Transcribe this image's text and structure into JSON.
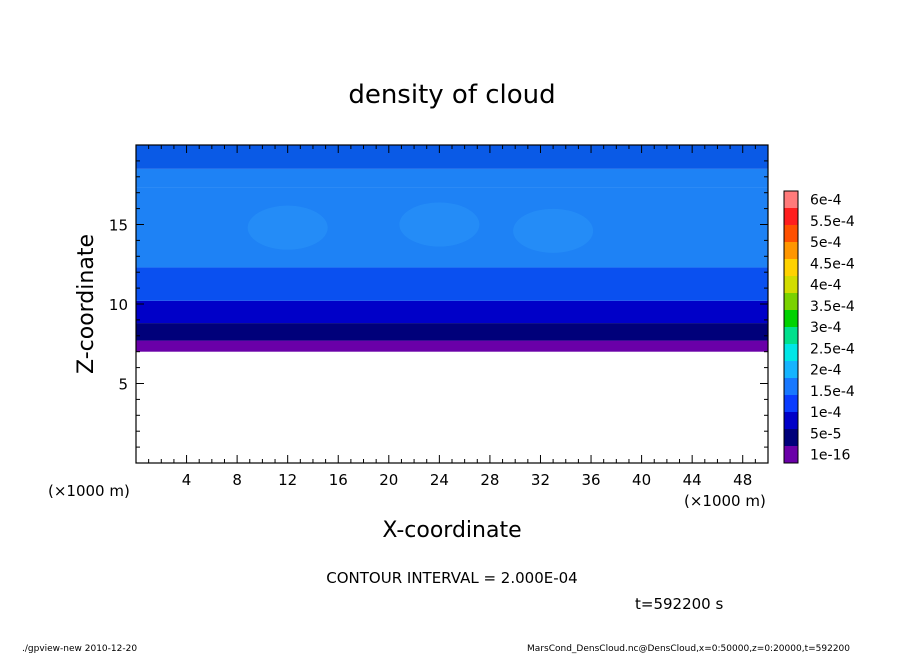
{
  "chart_data": {
    "type": "heatmap",
    "title": "density of cloud",
    "xlabel": "X-coordinate",
    "ylabel": "Z-coordinate",
    "x_unit_left": "(×1000 m)",
    "x_unit_right": "(×1000 m)",
    "xlim": [
      0,
      50
    ],
    "ylim": [
      0,
      20
    ],
    "x_ticks": [
      4,
      8,
      12,
      16,
      20,
      24,
      28,
      32,
      36,
      40,
      44,
      48
    ],
    "y_ticks": [
      5,
      10,
      15
    ],
    "colorbar": {
      "labels": [
        "1e-16",
        "5e-5",
        "1e-4",
        "1.5e-4",
        "2e-4",
        "2.5e-4",
        "3e-4",
        "3.5e-4",
        "4e-4",
        "4.5e-4",
        "5e-4",
        "5.5e-4",
        "6e-4"
      ],
      "colors": [
        "#6a00a8",
        "#00007a",
        "#0000c8",
        "#0a3cff",
        "#1878ff",
        "#16b4ff",
        "#00e6e6",
        "#00e08c",
        "#00d200",
        "#7ad200",
        "#d2dc00",
        "#ffd200",
        "#ff9600",
        "#ff5000",
        "#ff1e1e",
        "#ff7a7a"
      ]
    },
    "layers": [
      {
        "z_bottom": 7.0,
        "z_top": 7.7,
        "level": "1e-16"
      },
      {
        "z_bottom": 7.7,
        "z_top": 8.8,
        "level": "5e-5"
      },
      {
        "z_bottom": 8.8,
        "z_top": 10.2,
        "level": "1e-4"
      },
      {
        "z_bottom": 10.2,
        "z_top": 12.3,
        "level": "1.5e-4"
      },
      {
        "z_bottom": 12.3,
        "z_top": 17.3,
        "level": "1.5e-4"
      },
      {
        "z_bottom": 17.3,
        "z_top": 18.5,
        "level": "1.5e-4"
      },
      {
        "z_bottom": 18.5,
        "z_top": 20.0,
        "level": "1e-4"
      }
    ],
    "contour_interval": "CONTOUR INTERVAL = 2.000E-04",
    "time_label": "t=592200 s"
  },
  "footer": {
    "left": "./gpview-new   2010-12-20",
    "right": "MarsCond_DensCloud.nc@DensCloud,x=0:50000,z=0:20000,t=592200"
  }
}
